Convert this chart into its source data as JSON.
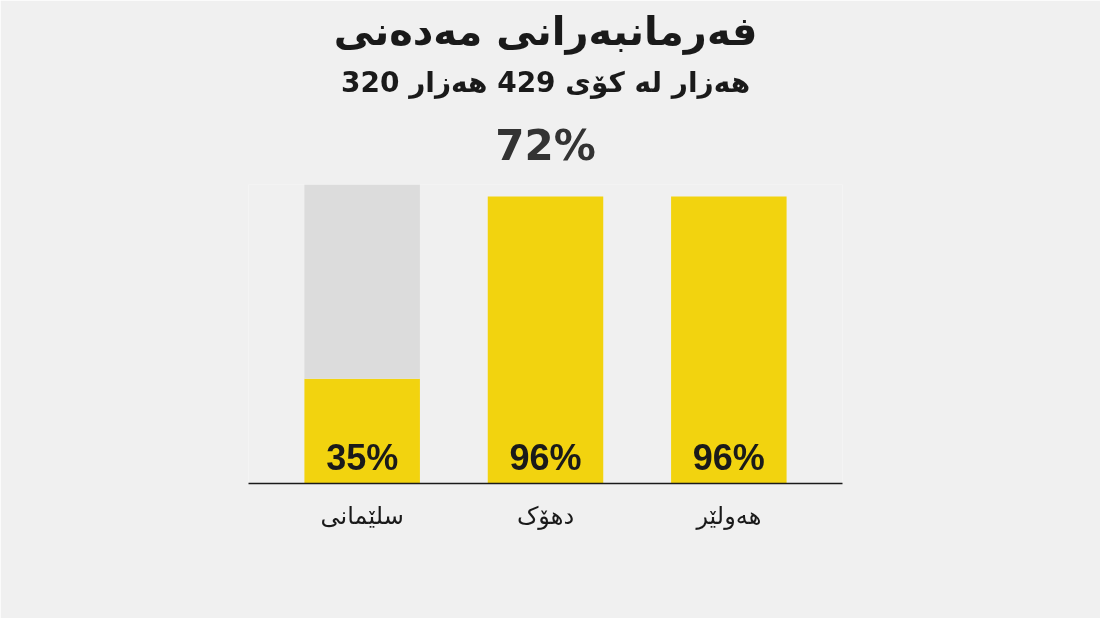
{
  "chart_data": {
    "type": "bar",
    "title": "فەرمانبەرانی مەدەنی",
    "subtitle": "320 هەزار لە کۆی 429 هەزار",
    "annotations": [
      "72%"
    ],
    "categories": [
      "سلێمانی",
      "دهۆک",
      "هەولێر"
    ],
    "stacked": true,
    "series": [
      {
        "color": "#f2d30f",
        "values": [
          35,
          96,
          96
        ],
        "value_labels": [
          "35%",
          "96%",
          "96%"
        ]
      },
      {
        "color": "#dcdcdc",
        "values": [
          65,
          null,
          null
        ]
      }
    ],
    "tick_labels": "x",
    "grid": false
  }
}
